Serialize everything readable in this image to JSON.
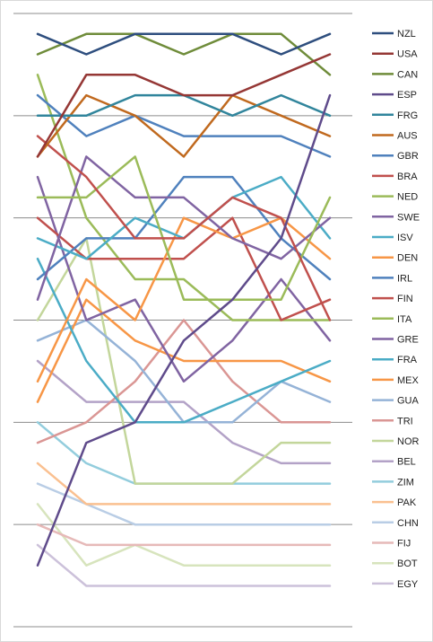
{
  "chart_data": {
    "type": "line",
    "title": "",
    "xlabel": "",
    "ylabel": "",
    "x": [
      1,
      2,
      3,
      4,
      5,
      6,
      7
    ],
    "ylim": [
      0,
      30
    ],
    "grid": true,
    "gridlines_y": [
      0,
      5,
      10,
      15,
      20,
      25,
      30
    ],
    "legend_position": "right",
    "series": [
      {
        "name": "NZL",
        "color": "#2E4E7E",
        "values": [
          1,
          2,
          1,
          1,
          1,
          2,
          1
        ]
      },
      {
        "name": "USA",
        "color": "#953735",
        "values": [
          7,
          3,
          3,
          4,
          4,
          3,
          2
        ]
      },
      {
        "name": "CAN",
        "color": "#6F8C3A",
        "values": [
          2,
          1,
          1,
          2,
          1,
          1,
          3
        ]
      },
      {
        "name": "ESP",
        "color": "#5F4B8B",
        "values": [
          27,
          21,
          20,
          16,
          14,
          11,
          4
        ]
      },
      {
        "name": "FRG",
        "color": "#31859C",
        "values": [
          5,
          5,
          4,
          4,
          5,
          4,
          5
        ]
      },
      {
        "name": "AUS",
        "color": "#C0691E",
        "values": [
          7,
          4,
          5,
          7,
          4,
          5,
          6
        ]
      },
      {
        "name": "GBR",
        "color": "#4F81BD",
        "values": [
          4,
          6,
          5,
          6,
          6,
          6,
          7
        ]
      },
      {
        "name": "BRA",
        "color": "#C0504D",
        "values": [
          6,
          8,
          11,
          11,
          9,
          10,
          15
        ]
      },
      {
        "name": "NED",
        "color": "#9BBB59",
        "values": [
          9,
          9,
          7,
          14,
          14,
          14,
          9
        ]
      },
      {
        "name": "SWE",
        "color": "#8064A2",
        "values": [
          14,
          7,
          9,
          9,
          11,
          12,
          10
        ]
      },
      {
        "name": "ISV",
        "color": "#4BACC6",
        "values": [
          11,
          12,
          10,
          11,
          9,
          8,
          11
        ]
      },
      {
        "name": "DEN",
        "color": "#F79646",
        "values": [
          18,
          13,
          15,
          10,
          11,
          10,
          12
        ]
      },
      {
        "name": "IRL",
        "color": "#4F81BD",
        "values": [
          13,
          11,
          11,
          8,
          8,
          11,
          13
        ]
      },
      {
        "name": "FIN",
        "color": "#C0504D",
        "values": [
          10,
          12,
          12,
          12,
          10,
          15,
          14
        ]
      },
      {
        "name": "ITA",
        "color": "#9BBB59",
        "values": [
          3,
          10,
          13,
          13,
          15,
          15,
          15
        ]
      },
      {
        "name": "GRE",
        "color": "#8064A2",
        "values": [
          8,
          15,
          14,
          18,
          16,
          13,
          16
        ]
      },
      {
        "name": "FRA",
        "color": "#4BACC6",
        "values": [
          12,
          17,
          20,
          20,
          19,
          18,
          17
        ]
      },
      {
        "name": "MEX",
        "color": "#F79646",
        "values": [
          19,
          14,
          16,
          17,
          17,
          17,
          18
        ]
      },
      {
        "name": "GUA",
        "color": "#95B3D7",
        "values": [
          16,
          15,
          17,
          20,
          20,
          18,
          19
        ]
      },
      {
        "name": "TRI",
        "color": "#DA9694",
        "values": [
          21,
          20,
          18,
          15,
          18,
          20,
          20
        ]
      },
      {
        "name": "NOR",
        "color": "#C3D69B",
        "values": [
          15,
          11,
          23,
          23,
          23,
          21,
          21
        ]
      },
      {
        "name": "BEL",
        "color": "#B3A2C7",
        "values": [
          17,
          19,
          19,
          19,
          21,
          22,
          22
        ]
      },
      {
        "name": "ZIM",
        "color": "#93CDDD",
        "values": [
          20,
          22,
          23,
          23,
          23,
          23,
          23
        ]
      },
      {
        "name": "PAK",
        "color": "#FAC090",
        "values": [
          22,
          24,
          24,
          24,
          24,
          24,
          24
        ]
      },
      {
        "name": "CHN",
        "color": "#B9CDE5",
        "values": [
          23,
          24,
          25,
          25,
          25,
          25,
          25
        ]
      },
      {
        "name": "FIJ",
        "color": "#E6B9B8",
        "values": [
          25,
          26,
          26,
          26,
          26,
          26,
          26
        ]
      },
      {
        "name": "BOT",
        "color": "#D7E4BD",
        "values": [
          24,
          27,
          26,
          27,
          27,
          27,
          27
        ]
      },
      {
        "name": "EGY",
        "color": "#CCC1DA",
        "values": [
          26,
          28,
          28,
          28,
          28,
          28,
          28
        ]
      }
    ]
  }
}
